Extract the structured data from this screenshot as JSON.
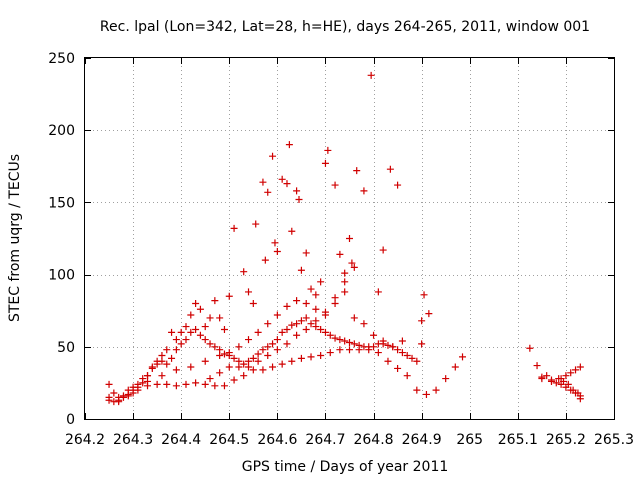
{
  "chart_data": {
    "type": "scatter",
    "title": "Rec. lpal (Lon=342, Lat=28, h=HE), days 264-265, 2011, window 001",
    "xlabel": "GPS time / Days of year 2011",
    "ylabel": "STEC from uqrg / TECUs",
    "xlim": [
      264.2,
      265.3
    ],
    "ylim": [
      0,
      250
    ],
    "xticks": [
      "264.2",
      "264.3",
      "264.4",
      "264.5",
      "264.6",
      "264.7",
      "264.8",
      "264.9",
      "265",
      "265.1",
      "265.2",
      "265.3"
    ],
    "yticks": [
      "0",
      "50",
      "100",
      "150",
      "200",
      "250"
    ],
    "grid": true,
    "marker": "+",
    "color": "#d00000",
    "series": [
      {
        "points": [
          [
            264.25,
            24
          ],
          [
            264.26,
            18
          ],
          [
            264.27,
            15
          ],
          [
            264.28,
            16
          ],
          [
            264.29,
            20
          ],
          [
            264.3,
            22
          ],
          [
            264.31,
            24
          ],
          [
            264.32,
            28
          ],
          [
            264.33,
            30
          ],
          [
            264.34,
            36
          ],
          [
            264.35,
            40
          ],
          [
            264.36,
            44
          ],
          [
            264.37,
            48
          ],
          [
            264.38,
            60
          ],
          [
            264.39,
            55
          ],
          [
            264.4,
            60
          ],
          [
            264.41,
            64
          ],
          [
            264.42,
            72
          ],
          [
            264.43,
            80
          ],
          [
            264.44,
            76
          ],
          [
            264.45,
            64
          ],
          [
            264.46,
            70
          ],
          [
            264.47,
            82
          ],
          [
            264.48,
            70
          ],
          [
            264.49,
            62
          ],
          [
            264.5,
            85
          ],
          [
            264.51,
            132
          ],
          [
            264.53,
            102
          ],
          [
            264.54,
            88
          ],
          [
            264.55,
            80
          ],
          [
            264.555,
            135
          ],
          [
            264.57,
            164
          ],
          [
            264.575,
            110
          ],
          [
            264.58,
            157
          ],
          [
            264.59,
            182
          ],
          [
            264.595,
            122
          ],
          [
            264.6,
            116
          ],
          [
            264.61,
            166
          ],
          [
            264.62,
            163
          ],
          [
            264.625,
            190
          ],
          [
            264.63,
            130
          ],
          [
            264.64,
            158
          ],
          [
            264.645,
            152
          ],
          [
            264.65,
            103
          ],
          [
            264.66,
            115
          ],
          [
            264.67,
            90
          ],
          [
            264.68,
            86
          ],
          [
            264.69,
            95
          ],
          [
            264.7,
            177
          ],
          [
            264.705,
            186
          ],
          [
            264.72,
            162
          ],
          [
            264.73,
            114
          ],
          [
            264.74,
            101
          ],
          [
            264.75,
            125
          ],
          [
            264.755,
            108
          ],
          [
            264.765,
            172
          ],
          [
            264.78,
            158
          ],
          [
            264.795,
            238
          ],
          [
            264.81,
            88
          ],
          [
            264.82,
            117
          ],
          [
            264.835,
            173
          ],
          [
            264.85,
            162
          ],
          [
            264.9,
            68
          ],
          [
            264.905,
            86
          ],
          [
            264.915,
            73
          ]
        ]
      },
      {
        "points": [
          [
            264.25,
            13
          ],
          [
            264.26,
            12
          ],
          [
            264.27,
            13
          ],
          [
            264.28,
            15
          ],
          [
            264.29,
            17
          ],
          [
            264.3,
            20
          ],
          [
            264.31,
            22
          ],
          [
            264.32,
            25
          ],
          [
            264.33,
            30
          ],
          [
            264.34,
            35
          ],
          [
            264.35,
            38
          ],
          [
            264.36,
            40
          ],
          [
            264.37,
            38
          ],
          [
            264.38,
            42
          ],
          [
            264.39,
            48
          ],
          [
            264.4,
            52
          ],
          [
            264.41,
            55
          ],
          [
            264.42,
            60
          ],
          [
            264.43,
            62
          ],
          [
            264.44,
            58
          ],
          [
            264.45,
            55
          ],
          [
            264.46,
            52
          ],
          [
            264.47,
            50
          ],
          [
            264.48,
            48
          ],
          [
            264.49,
            45
          ],
          [
            264.5,
            44
          ],
          [
            264.51,
            42
          ],
          [
            264.52,
            40
          ],
          [
            264.53,
            38
          ],
          [
            264.54,
            40
          ],
          [
            264.55,
            42
          ],
          [
            264.56,
            45
          ],
          [
            264.57,
            48
          ],
          [
            264.58,
            50
          ],
          [
            264.59,
            52
          ],
          [
            264.6,
            55
          ],
          [
            264.61,
            60
          ],
          [
            264.62,
            62
          ],
          [
            264.63,
            65
          ],
          [
            264.64,
            66
          ],
          [
            264.65,
            68
          ],
          [
            264.66,
            70
          ],
          [
            264.67,
            66
          ],
          [
            264.68,
            64
          ],
          [
            264.69,
            62
          ],
          [
            264.7,
            60
          ],
          [
            264.71,
            58
          ],
          [
            264.72,
            56
          ],
          [
            264.73,
            55
          ],
          [
            264.74,
            54
          ],
          [
            264.75,
            53
          ],
          [
            264.76,
            52
          ],
          [
            264.77,
            51
          ],
          [
            264.78,
            50
          ],
          [
            264.79,
            50
          ],
          [
            264.8,
            50
          ],
          [
            264.81,
            52
          ],
          [
            264.82,
            52
          ],
          [
            264.83,
            51
          ],
          [
            264.84,
            50
          ],
          [
            264.85,
            48
          ],
          [
            264.86,
            46
          ],
          [
            264.87,
            44
          ],
          [
            264.88,
            42
          ],
          [
            264.89,
            40
          ],
          [
            264.9,
            52
          ]
        ]
      },
      {
        "points": [
          [
            264.25,
            15
          ],
          [
            264.27,
            12
          ],
          [
            264.29,
            16
          ],
          [
            264.31,
            20
          ],
          [
            264.33,
            23
          ],
          [
            264.35,
            24
          ],
          [
            264.37,
            24
          ],
          [
            264.39,
            23
          ],
          [
            264.41,
            24
          ],
          [
            264.43,
            25
          ],
          [
            264.45,
            24
          ],
          [
            264.47,
            23
          ],
          [
            264.49,
            23
          ],
          [
            264.51,
            27
          ],
          [
            264.53,
            30
          ],
          [
            264.55,
            34
          ],
          [
            264.57,
            34
          ],
          [
            264.59,
            36
          ],
          [
            264.61,
            38
          ],
          [
            264.63,
            40
          ],
          [
            264.65,
            42
          ],
          [
            264.67,
            43
          ],
          [
            264.69,
            44
          ],
          [
            264.71,
            46
          ],
          [
            264.73,
            48
          ],
          [
            264.75,
            48
          ],
          [
            264.77,
            48
          ],
          [
            264.79,
            48
          ],
          [
            264.81,
            46
          ],
          [
            264.83,
            40
          ],
          [
            264.85,
            35
          ],
          [
            264.87,
            30
          ],
          [
            264.89,
            20
          ],
          [
            264.91,
            17
          ],
          [
            264.93,
            20
          ],
          [
            264.95,
            28
          ],
          [
            264.97,
            36
          ],
          [
            264.985,
            43
          ]
        ]
      },
      {
        "points": [
          [
            264.3,
            18
          ],
          [
            264.33,
            26
          ],
          [
            264.36,
            30
          ],
          [
            264.39,
            34
          ],
          [
            264.42,
            36
          ],
          [
            264.45,
            40
          ],
          [
            264.48,
            44
          ],
          [
            264.5,
            46
          ],
          [
            264.52,
            50
          ],
          [
            264.54,
            55
          ],
          [
            264.56,
            60
          ],
          [
            264.58,
            66
          ],
          [
            264.6,
            72
          ],
          [
            264.62,
            78
          ],
          [
            264.64,
            82
          ],
          [
            264.66,
            80
          ],
          [
            264.68,
            76
          ],
          [
            264.7,
            72
          ],
          [
            264.72,
            84
          ],
          [
            264.74,
            88
          ],
          [
            264.76,
            70
          ],
          [
            264.78,
            66
          ],
          [
            264.8,
            58
          ],
          [
            264.82,
            54
          ],
          [
            264.84,
            50
          ],
          [
            264.86,
            54
          ]
        ]
      },
      {
        "points": [
          [
            264.46,
            28
          ],
          [
            264.48,
            32
          ],
          [
            264.5,
            36
          ],
          [
            264.52,
            36
          ],
          [
            264.54,
            36
          ],
          [
            264.56,
            40
          ],
          [
            264.58,
            44
          ],
          [
            264.6,
            48
          ],
          [
            264.62,
            52
          ],
          [
            264.64,
            58
          ],
          [
            264.66,
            62
          ],
          [
            264.68,
            68
          ],
          [
            264.7,
            74
          ],
          [
            264.72,
            80
          ],
          [
            264.74,
            95
          ],
          [
            264.76,
            105
          ]
        ]
      },
      {
        "points": [
          [
            265.125,
            49
          ],
          [
            265.14,
            37
          ],
          [
            265.15,
            28
          ],
          [
            265.16,
            30
          ],
          [
            265.17,
            27
          ],
          [
            265.18,
            25
          ],
          [
            265.19,
            28
          ],
          [
            265.2,
            30
          ],
          [
            265.21,
            32
          ],
          [
            265.22,
            34
          ],
          [
            265.23,
            36
          ],
          [
            265.15,
            29
          ],
          [
            265.17,
            26
          ],
          [
            265.19,
            24
          ],
          [
            265.2,
            22
          ],
          [
            265.21,
            20
          ],
          [
            265.22,
            18
          ],
          [
            265.23,
            16
          ],
          [
            265.185,
            28
          ],
          [
            265.195,
            26
          ],
          [
            265.205,
            24
          ],
          [
            265.215,
            20
          ],
          [
            265.225,
            18
          ],
          [
            265.23,
            14
          ]
        ]
      }
    ]
  }
}
